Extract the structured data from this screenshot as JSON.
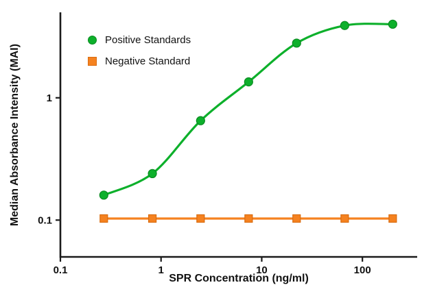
{
  "chart_data": {
    "type": "line",
    "title": "",
    "xlabel": "SPR Concentration (ng/ml)",
    "ylabel": "Median Absorbance Intensity (MAI)",
    "xscale": "log",
    "yscale": "log",
    "xlim": [
      0.1,
      350
    ],
    "ylim": [
      0.05,
      5
    ],
    "grid": false,
    "legend_position": "inside-top-left",
    "axis_color": "#1a1a1a",
    "xticks": {
      "values": [
        0.1,
        1,
        10,
        100
      ],
      "labels": [
        "0.1",
        "1",
        "10",
        "100"
      ]
    },
    "yticks": {
      "values": [
        0.1,
        1
      ],
      "labels": [
        "0.1",
        "1"
      ]
    },
    "x": [
      0.27,
      0.82,
      2.47,
      7.41,
      22.2,
      66.7,
      200
    ],
    "series": [
      {
        "name": "Positive Standards",
        "color": "#0db02b",
        "edge_color": "#0a8a20",
        "marker": "circle",
        "smooth": true,
        "values": [
          0.16,
          0.24,
          0.65,
          1.35,
          2.8,
          3.9,
          4.0
        ]
      },
      {
        "name": "Negative Standard",
        "color": "#f58220",
        "edge_color": "#d96c10",
        "marker": "square",
        "smooth": false,
        "values": [
          0.103,
          0.103,
          0.103,
          0.103,
          0.103,
          0.103,
          0.103
        ]
      }
    ]
  }
}
